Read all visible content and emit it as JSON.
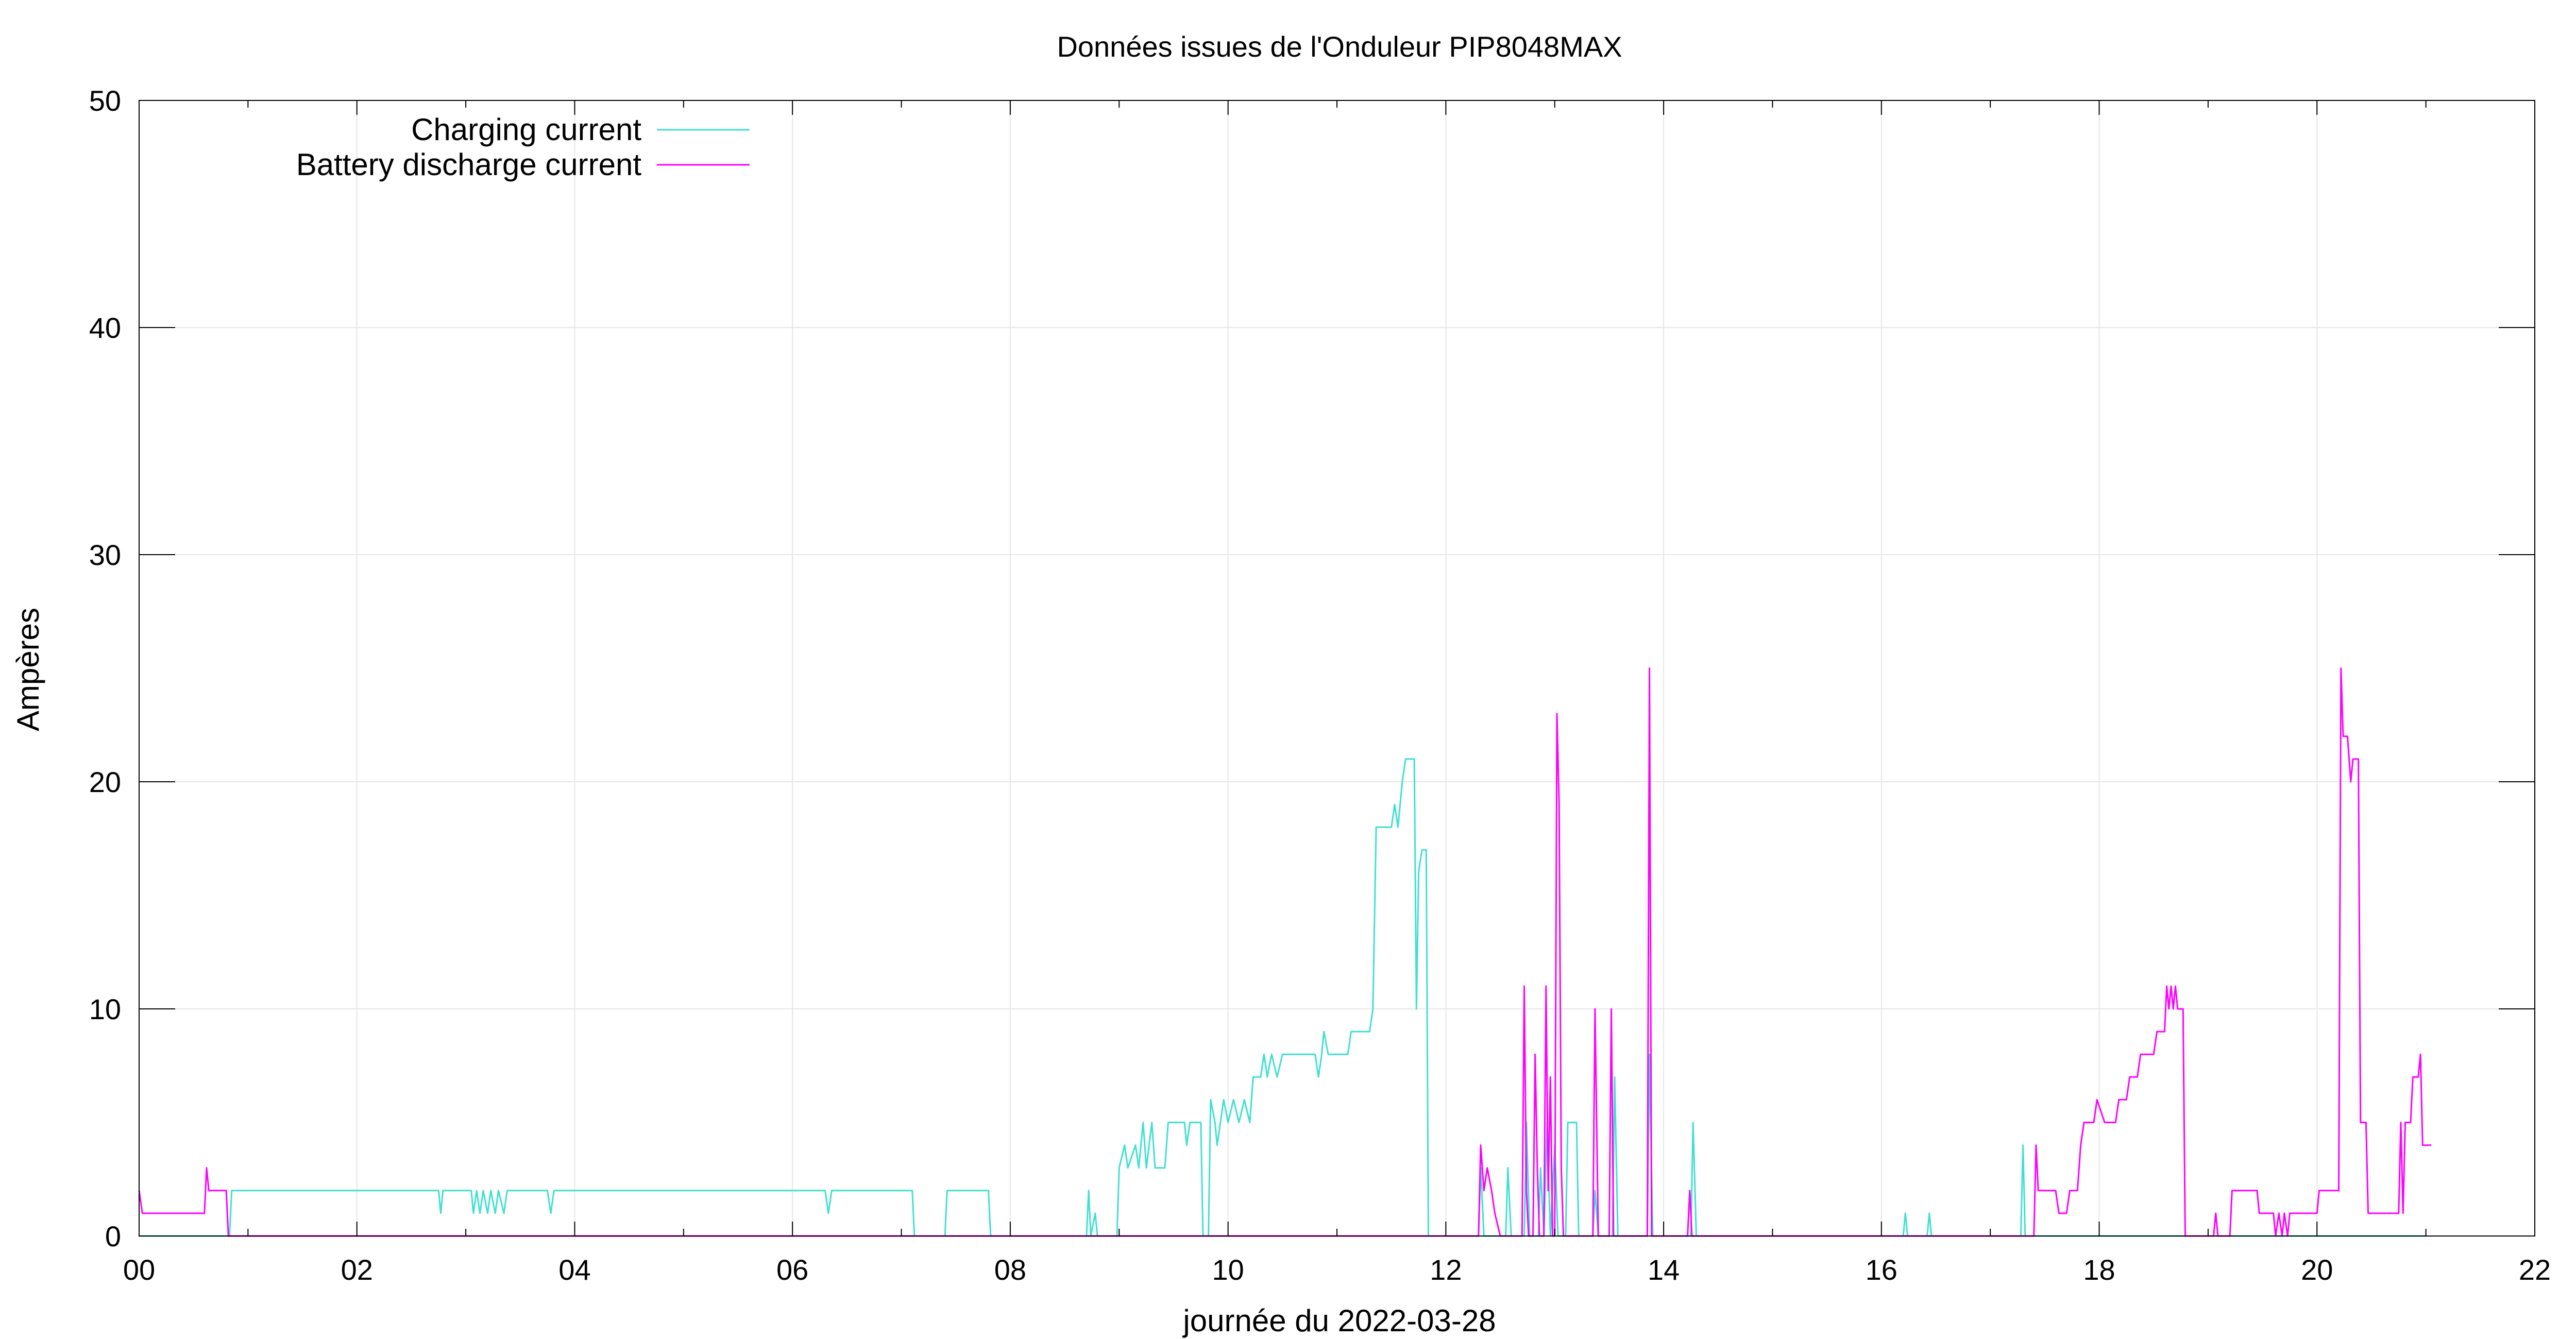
{
  "chart_data": {
    "type": "line",
    "title": "Données issues de l'Onduleur PIP8048MAX",
    "xlabel": "journée du 2022-03-28",
    "ylabel": "Ampères",
    "xlim": [
      0,
      22
    ],
    "ylim": [
      0,
      50
    ],
    "x_ticks": [
      "00",
      "02",
      "04",
      "06",
      "08",
      "10",
      "12",
      "14",
      "16",
      "18",
      "20",
      "22"
    ],
    "y_ticks": [
      "0",
      "10",
      "20",
      "30",
      "40",
      "50"
    ],
    "grid": true,
    "legend_position": "top-left",
    "series": [
      {
        "name": "Charging current",
        "color": "#40e0d0",
        "points": [
          [
            0.0,
            0
          ],
          [
            0.83,
            0
          ],
          [
            0.85,
            2
          ],
          [
            2.75,
            2
          ],
          [
            2.77,
            1
          ],
          [
            2.79,
            2
          ],
          [
            3.05,
            2
          ],
          [
            3.07,
            1
          ],
          [
            3.1,
            2
          ],
          [
            3.13,
            1
          ],
          [
            3.16,
            2
          ],
          [
            3.2,
            1
          ],
          [
            3.23,
            2
          ],
          [
            3.27,
            1
          ],
          [
            3.3,
            2
          ],
          [
            3.35,
            1
          ],
          [
            3.38,
            2
          ],
          [
            3.75,
            2
          ],
          [
            3.78,
            1
          ],
          [
            3.81,
            2
          ],
          [
            6.3,
            2
          ],
          [
            6.33,
            1
          ],
          [
            6.36,
            2
          ],
          [
            7.1,
            2
          ],
          [
            7.12,
            0
          ],
          [
            7.4,
            0
          ],
          [
            7.42,
            2
          ],
          [
            7.8,
            2
          ],
          [
            7.82,
            0
          ],
          [
            8.7,
            0
          ],
          [
            8.72,
            2
          ],
          [
            8.74,
            0
          ],
          [
            8.78,
            1
          ],
          [
            8.8,
            0
          ],
          [
            8.98,
            0
          ],
          [
            9.0,
            3
          ],
          [
            9.05,
            4
          ],
          [
            9.08,
            3
          ],
          [
            9.15,
            4
          ],
          [
            9.18,
            3
          ],
          [
            9.22,
            5
          ],
          [
            9.25,
            3
          ],
          [
            9.3,
            5
          ],
          [
            9.33,
            3
          ],
          [
            9.42,
            3
          ],
          [
            9.45,
            5
          ],
          [
            9.6,
            5
          ],
          [
            9.62,
            4
          ],
          [
            9.65,
            5
          ],
          [
            9.75,
            5
          ],
          [
            9.77,
            0
          ],
          [
            9.82,
            0
          ],
          [
            9.84,
            6
          ],
          [
            9.88,
            5
          ],
          [
            9.9,
            4
          ],
          [
            9.93,
            5
          ],
          [
            9.96,
            6
          ],
          [
            10.0,
            5
          ],
          [
            10.05,
            6
          ],
          [
            10.1,
            5
          ],
          [
            10.15,
            6
          ],
          [
            10.2,
            5
          ],
          [
            10.23,
            7
          ],
          [
            10.3,
            7
          ],
          [
            10.33,
            8
          ],
          [
            10.36,
            7
          ],
          [
            10.4,
            8
          ],
          [
            10.45,
            7
          ],
          [
            10.5,
            8
          ],
          [
            10.8,
            8
          ],
          [
            10.83,
            7
          ],
          [
            10.86,
            8
          ],
          [
            10.88,
            9
          ],
          [
            10.92,
            8
          ],
          [
            11.1,
            8
          ],
          [
            11.13,
            9
          ],
          [
            11.3,
            9
          ],
          [
            11.33,
            10
          ],
          [
            11.36,
            18
          ],
          [
            11.5,
            18
          ],
          [
            11.53,
            19
          ],
          [
            11.56,
            18
          ],
          [
            11.6,
            20
          ],
          [
            11.63,
            21
          ],
          [
            11.71,
            21
          ],
          [
            11.73,
            10
          ],
          [
            11.75,
            16
          ],
          [
            11.78,
            17
          ],
          [
            11.82,
            17
          ],
          [
            11.84,
            0
          ],
          [
            12.3,
            0
          ],
          [
            12.32,
            3
          ],
          [
            12.35,
            0
          ],
          [
            12.55,
            0
          ],
          [
            12.57,
            3
          ],
          [
            12.6,
            0
          ],
          [
            12.72,
            0
          ],
          [
            12.74,
            5
          ],
          [
            12.77,
            0
          ],
          [
            12.85,
            0
          ],
          [
            12.87,
            3
          ],
          [
            12.9,
            0
          ],
          [
            12.93,
            5
          ],
          [
            12.96,
            0
          ],
          [
            13.0,
            4
          ],
          [
            13.03,
            0
          ],
          [
            13.1,
            0
          ],
          [
            13.12,
            5
          ],
          [
            13.2,
            5
          ],
          [
            13.22,
            0
          ],
          [
            13.35,
            0
          ],
          [
            13.37,
            2
          ],
          [
            13.4,
            0
          ],
          [
            13.53,
            0
          ],
          [
            13.55,
            7
          ],
          [
            13.58,
            0
          ],
          [
            13.85,
            0
          ],
          [
            13.87,
            8
          ],
          [
            13.9,
            0
          ],
          [
            14.25,
            0
          ],
          [
            14.27,
            5
          ],
          [
            14.3,
            0
          ],
          [
            16.2,
            0
          ],
          [
            16.22,
            1
          ],
          [
            16.24,
            0
          ],
          [
            16.42,
            0
          ],
          [
            16.44,
            1
          ],
          [
            16.46,
            0
          ],
          [
            17.28,
            0
          ],
          [
            17.3,
            4
          ],
          [
            17.32,
            0
          ],
          [
            20.0,
            0
          ],
          [
            21.0,
            0
          ]
        ]
      },
      {
        "name": "Battery discharge current",
        "color": "#ff00ff",
        "points": [
          [
            0.0,
            2
          ],
          [
            0.03,
            1
          ],
          [
            0.6,
            1
          ],
          [
            0.62,
            3
          ],
          [
            0.64,
            2
          ],
          [
            0.8,
            2
          ],
          [
            0.82,
            0
          ],
          [
            12.3,
            0
          ],
          [
            12.32,
            4
          ],
          [
            12.35,
            2
          ],
          [
            12.38,
            3
          ],
          [
            12.42,
            2
          ],
          [
            12.45,
            1
          ],
          [
            12.5,
            0
          ],
          [
            12.7,
            0
          ],
          [
            12.72,
            11
          ],
          [
            12.74,
            2
          ],
          [
            12.76,
            0
          ],
          [
            12.8,
            0
          ],
          [
            12.82,
            8
          ],
          [
            12.84,
            3
          ],
          [
            12.86,
            0
          ],
          [
            12.9,
            0
          ],
          [
            12.92,
            11
          ],
          [
            12.94,
            2
          ],
          [
            12.96,
            7
          ],
          [
            12.98,
            0
          ],
          [
            13.0,
            0
          ],
          [
            13.02,
            23
          ],
          [
            13.04,
            19
          ],
          [
            13.06,
            3
          ],
          [
            13.08,
            0
          ],
          [
            13.35,
            0
          ],
          [
            13.37,
            10
          ],
          [
            13.4,
            0
          ],
          [
            13.5,
            0
          ],
          [
            13.52,
            10
          ],
          [
            13.54,
            0
          ],
          [
            13.85,
            0
          ],
          [
            13.87,
            25
          ],
          [
            13.89,
            0
          ],
          [
            14.22,
            0
          ],
          [
            14.24,
            2
          ],
          [
            14.26,
            0
          ],
          [
            17.4,
            0
          ],
          [
            17.42,
            4
          ],
          [
            17.44,
            2
          ],
          [
            17.6,
            2
          ],
          [
            17.63,
            1
          ],
          [
            17.7,
            1
          ],
          [
            17.73,
            2
          ],
          [
            17.8,
            2
          ],
          [
            17.83,
            4
          ],
          [
            17.86,
            5
          ],
          [
            17.95,
            5
          ],
          [
            17.98,
            6
          ],
          [
            18.05,
            5
          ],
          [
            18.15,
            5
          ],
          [
            18.18,
            6
          ],
          [
            18.25,
            6
          ],
          [
            18.28,
            7
          ],
          [
            18.35,
            7
          ],
          [
            18.38,
            8
          ],
          [
            18.5,
            8
          ],
          [
            18.53,
            9
          ],
          [
            18.6,
            9
          ],
          [
            18.62,
            11
          ],
          [
            18.64,
            10
          ],
          [
            18.66,
            11
          ],
          [
            18.68,
            10
          ],
          [
            18.7,
            11
          ],
          [
            18.72,
            10
          ],
          [
            18.77,
            10
          ],
          [
            18.79,
            0
          ],
          [
            19.05,
            0
          ],
          [
            19.07,
            1
          ],
          [
            19.09,
            0
          ],
          [
            19.2,
            0
          ],
          [
            19.22,
            2
          ],
          [
            19.45,
            2
          ],
          [
            19.47,
            1
          ],
          [
            19.6,
            1
          ],
          [
            19.62,
            0
          ],
          [
            19.65,
            1
          ],
          [
            19.68,
            0
          ],
          [
            19.7,
            1
          ],
          [
            19.73,
            0
          ],
          [
            19.75,
            1
          ],
          [
            20.0,
            1
          ],
          [
            20.02,
            2
          ],
          [
            20.2,
            2
          ],
          [
            20.22,
            25
          ],
          [
            20.24,
            22
          ],
          [
            20.28,
            22
          ],
          [
            20.31,
            20
          ],
          [
            20.33,
            21
          ],
          [
            20.38,
            21
          ],
          [
            20.4,
            5
          ],
          [
            20.45,
            5
          ],
          [
            20.47,
            1
          ],
          [
            20.75,
            1
          ],
          [
            20.77,
            5
          ],
          [
            20.79,
            1
          ],
          [
            20.81,
            5
          ],
          [
            20.86,
            5
          ],
          [
            20.88,
            7
          ],
          [
            20.93,
            7
          ],
          [
            20.95,
            8
          ],
          [
            20.97,
            4
          ],
          [
            21.05,
            4
          ]
        ]
      }
    ]
  }
}
